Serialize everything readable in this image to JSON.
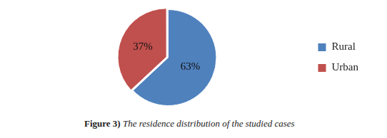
{
  "chart_data": {
    "type": "pie",
    "title": "Figure 3) The residence distribution of the studied cases",
    "categories": [
      "Rural",
      "Urban"
    ],
    "values": [
      63,
      37
    ],
    "value_labels": [
      "63%",
      "37%"
    ],
    "colors": [
      "#4f81bd",
      "#c0504d"
    ],
    "data_labels": true,
    "legend": "right"
  }
}
